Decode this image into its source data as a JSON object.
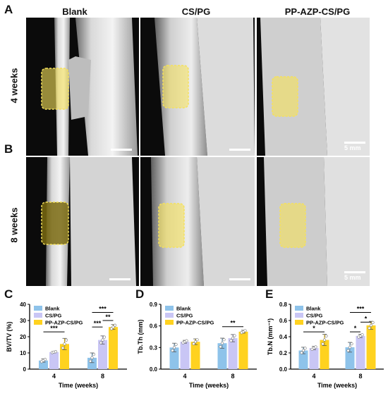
{
  "figure": {
    "panel_labels": {
      "A": "A",
      "B": "B",
      "C": "C",
      "D": "D",
      "E": "E"
    },
    "column_titles": [
      "Blank",
      "CS/PG",
      "PP-AZP-CS/PG"
    ],
    "row_labels": [
      "4 weeks",
      "8 weeks"
    ],
    "scale_bar_label": "5 mm"
  },
  "colors": {
    "blank": "#8ec3ea",
    "cspg": "#c9c6f5",
    "ppazp": "#ffd21f",
    "highlight": "#f5e15a"
  },
  "chart_data": [
    {
      "type": "bar",
      "panel": "C",
      "ylabel": "BV/TV (%)",
      "xlabel": "Time (weeks)",
      "categories": [
        "4",
        "8"
      ],
      "ylim": [
        0,
        40
      ],
      "yticks": [
        0,
        10,
        20,
        30,
        40
      ],
      "legend": [
        "Blank",
        "CS/PG",
        "PP-AZP-CS/PG"
      ],
      "series": [
        {
          "name": "Blank",
          "values": [
            5.3,
            7.0
          ],
          "errors": [
            1.0,
            3.0
          ]
        },
        {
          "name": "CS/PG",
          "values": [
            10.5,
            18.0
          ],
          "errors": [
            0.4,
            2.5
          ]
        },
        {
          "name": "PP-AZP-CS/PG",
          "values": [
            15.5,
            26.0
          ],
          "errors": [
            3.5,
            1.5
          ]
        }
      ],
      "significance": [
        {
          "label": "***",
          "group": 0,
          "from": 0,
          "to": 2,
          "y": 23
        },
        {
          "label": "***",
          "group": 1,
          "from": 0,
          "to": 2,
          "y": 35
        },
        {
          "label": "***",
          "group": 1,
          "from": 0,
          "to": 1,
          "y": 26
        },
        {
          "label": "**",
          "group": 1,
          "from": 1,
          "to": 2,
          "y": 30
        }
      ]
    },
    {
      "type": "bar",
      "panel": "D",
      "ylabel": "Tb.Th (mm)",
      "xlabel": "Time (weeks)",
      "categories": [
        "4",
        "8"
      ],
      "ylim": [
        0,
        0.9
      ],
      "yticks": [
        0.0,
        0.3,
        0.6,
        0.9
      ],
      "legend": [
        "Blank",
        "CS/PG",
        "PP-AZP-CS/PG"
      ],
      "series": [
        {
          "name": "Blank",
          "values": [
            0.3,
            0.36
          ],
          "errors": [
            0.06,
            0.07
          ]
        },
        {
          "name": "CS/PG",
          "values": [
            0.38,
            0.43
          ],
          "errors": [
            0.02,
            0.05
          ]
        },
        {
          "name": "PP-AZP-CS/PG",
          "values": [
            0.38,
            0.52
          ],
          "errors": [
            0.04,
            0.02
          ]
        }
      ],
      "significance": [
        {
          "label": "**",
          "group": 1,
          "from": 0,
          "to": 2,
          "y": 0.59
        }
      ]
    },
    {
      "type": "bar",
      "panel": "E",
      "ylabel": "Tb.N (mm⁻¹)",
      "xlabel": "Time (weeks)",
      "categories": [
        "4",
        "8"
      ],
      "ylim": [
        0,
        0.8
      ],
      "yticks": [
        0.0,
        0.2,
        0.4,
        0.6,
        0.8
      ],
      "legend": [
        "Blank",
        "CS/PG",
        "PP-AZP-CS/PG"
      ],
      "series": [
        {
          "name": "Blank",
          "values": [
            0.23,
            0.27
          ],
          "errors": [
            0.04,
            0.06
          ]
        },
        {
          "name": "CS/PG",
          "values": [
            0.26,
            0.41
          ],
          "errors": [
            0.02,
            0.02
          ]
        },
        {
          "name": "PP-AZP-CS/PG",
          "values": [
            0.36,
            0.54
          ],
          "errors": [
            0.07,
            0.05
          ]
        }
      ],
      "significance": [
        {
          "label": "*",
          "group": 0,
          "from": 0,
          "to": 2,
          "y": 0.46
        },
        {
          "label": "***",
          "group": 1,
          "from": 0,
          "to": 2,
          "y": 0.7
        },
        {
          "label": "*",
          "group": 1,
          "from": 0,
          "to": 1,
          "y": 0.46
        },
        {
          "label": "*",
          "group": 1,
          "from": 1,
          "to": 2,
          "y": 0.58
        }
      ]
    }
  ]
}
